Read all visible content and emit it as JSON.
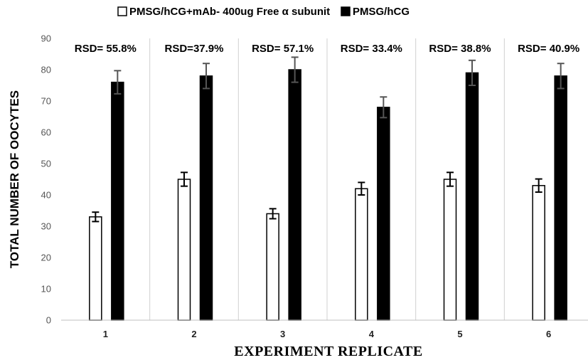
{
  "chart_data": {
    "type": "bar",
    "xlabel": "EXPERIMENT REPLICATE",
    "ylabel": "TOTAL NUMBER OF OOCYTES",
    "ylim": [
      0,
      90
    ],
    "yticks": [
      0,
      10,
      20,
      30,
      40,
      50,
      60,
      70,
      80,
      90
    ],
    "categories": [
      "1",
      "2",
      "3",
      "4",
      "5",
      "6"
    ],
    "grid": false,
    "legend_position": "top",
    "series": [
      {
        "name": "PMSG/hCG+mAb- 400ug Free α subunit",
        "fill": "#ffffff",
        "stroke": "#000000",
        "values": [
          33,
          45,
          34,
          42,
          45,
          43
        ],
        "errors": [
          1.5,
          2.2,
          1.6,
          2.0,
          2.2,
          2.1
        ]
      },
      {
        "name": "PMSG/hCG",
        "fill": "#000000",
        "stroke": "#000000",
        "values": [
          76,
          78,
          80,
          68,
          79,
          78
        ],
        "errors": [
          3.7,
          4.0,
          4.0,
          3.3,
          4.0,
          4.0
        ]
      }
    ],
    "annotations": [
      "RSD= 55.8%",
      "RSD=37.9%",
      "RSD= 57.1%",
      "RSD= 33.4%",
      "RSD= 38.8%",
      "RSD= 40.9%"
    ]
  }
}
